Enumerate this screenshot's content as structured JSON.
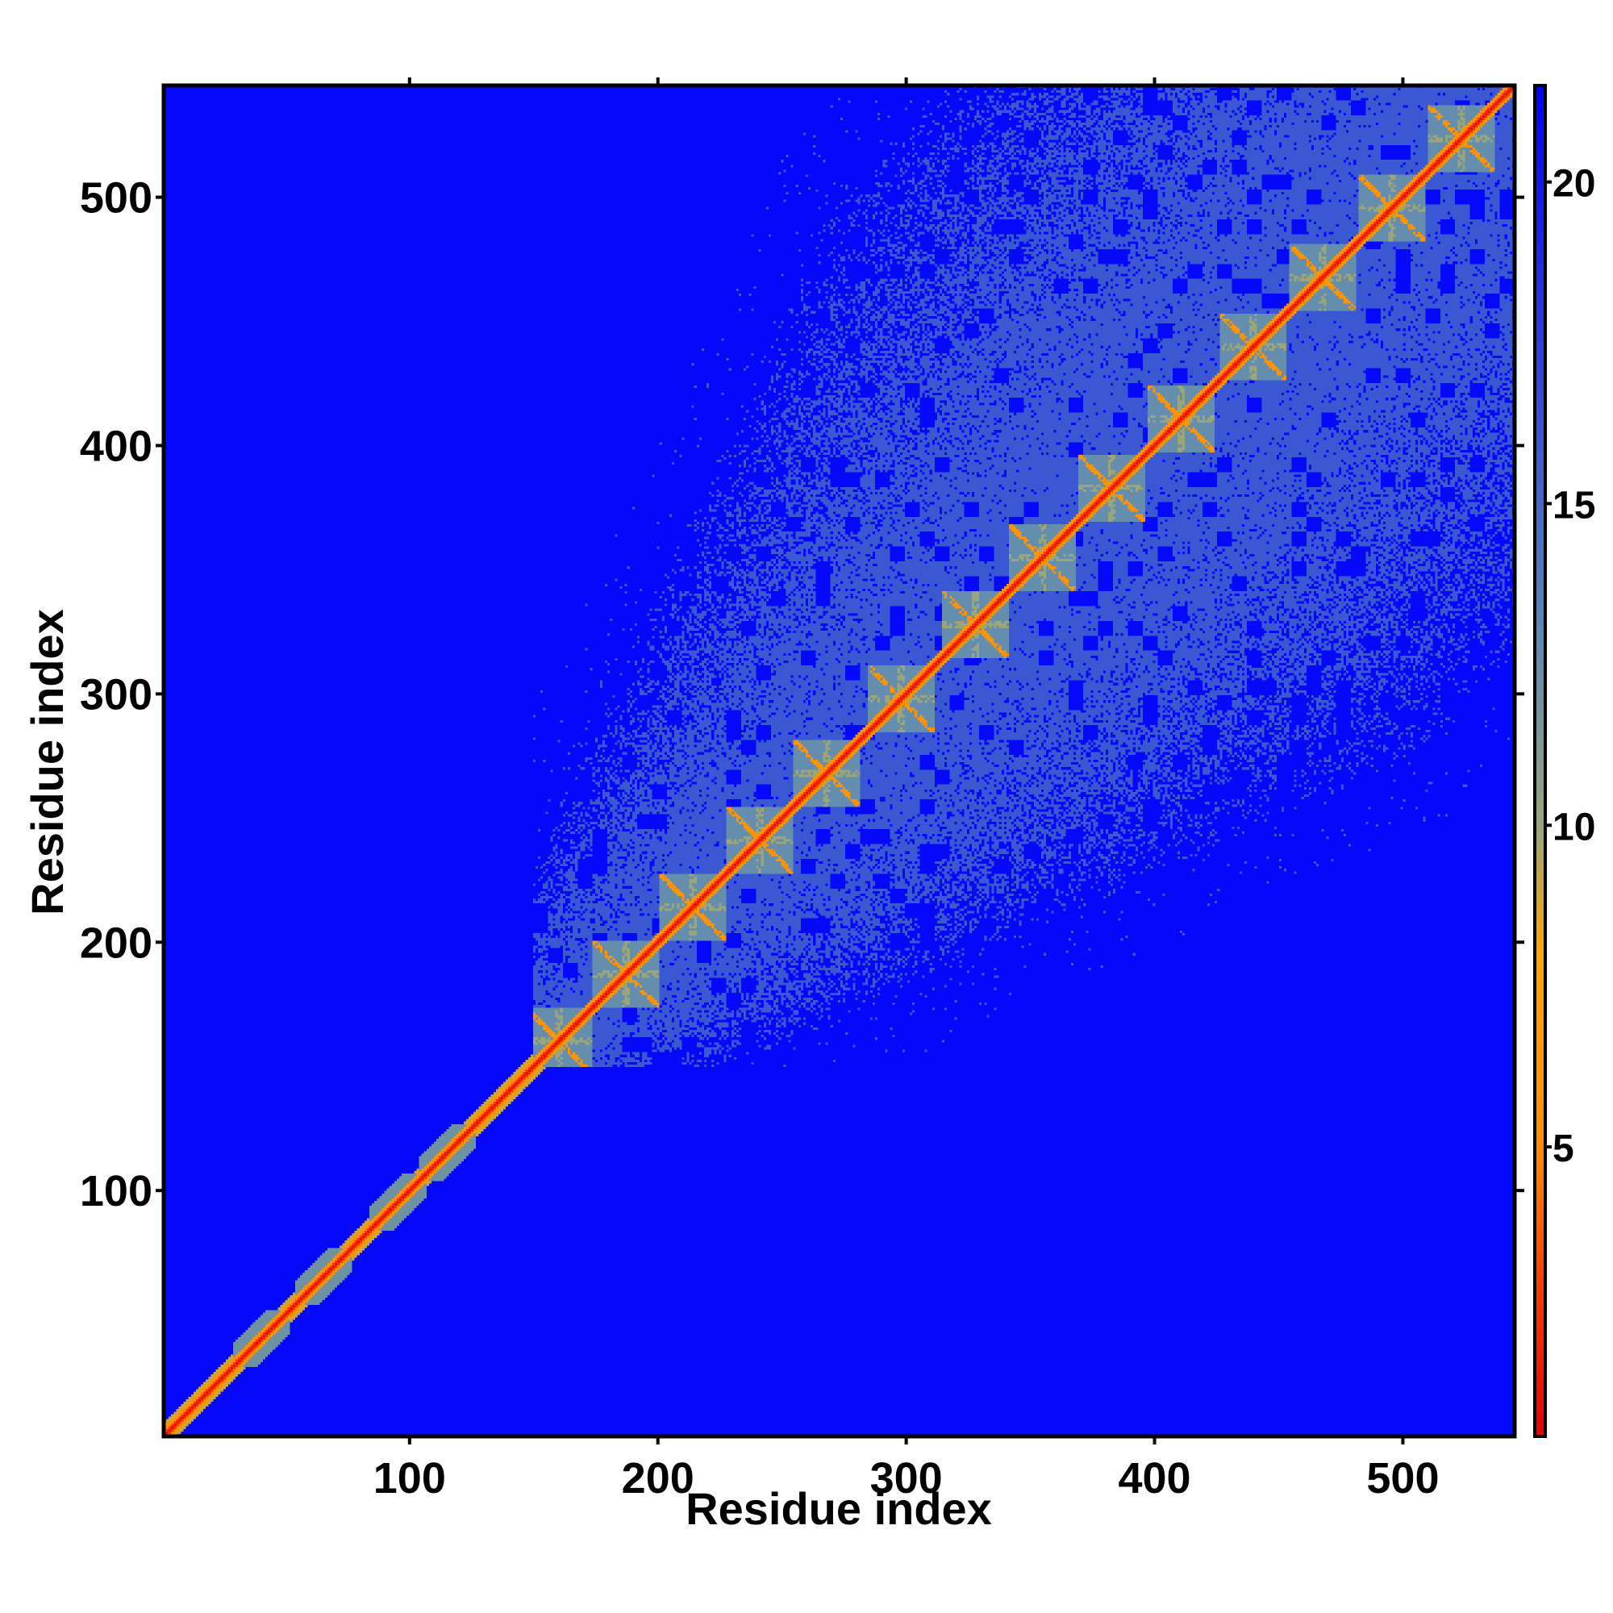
{
  "chart_data": {
    "type": "heatmap",
    "title": "",
    "xlabel": "Residue index",
    "ylabel": "Residue index",
    "xlim": [
      1,
      545
    ],
    "ylim": [
      1,
      545
    ],
    "x_ticks": [
      100,
      200,
      300,
      400,
      500
    ],
    "y_ticks": [
      100,
      200,
      300,
      400,
      500
    ],
    "x_tick_labels": [
      "100",
      "200",
      "300",
      "400",
      "500"
    ],
    "y_tick_labels": [
      "100",
      "200",
      "300",
      "400",
      "500"
    ],
    "colorbar": {
      "range": [
        0.5,
        21.5
      ],
      "ticks": [
        5,
        10,
        15,
        20
      ],
      "tick_labels": [
        "5",
        "10",
        "15",
        "20"
      ],
      "colors": [
        "#e60000",
        "#ff4000",
        "#ff8c00",
        "#ffa500",
        "#9aa57a",
        "#5a88b8",
        "#0000ff"
      ],
      "stops": [
        0.5,
        3,
        5,
        8,
        10,
        13,
        21.5
      ]
    },
    "matrix_description_values": {
      "diagonal_value": 1,
      "near_diagonal_value": 6,
      "domain_contact_value": 16,
      "background_value": 21
    },
    "structured_region": [
      155,
      545
    ],
    "diagonal_halo_residues": [
      40,
      65,
      95,
      115
    ],
    "repeat_centers": [
      160,
      187,
      214,
      241,
      268,
      298,
      328,
      355,
      383,
      411,
      440,
      468,
      496,
      524
    ],
    "grid": false,
    "legend": "colorbar-right"
  }
}
